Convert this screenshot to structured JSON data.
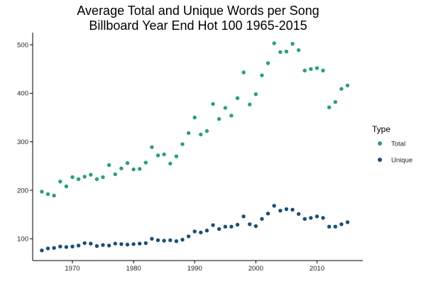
{
  "chart_data": {
    "type": "scatter",
    "title": "Average Total and Unique Words per Song",
    "subtitle": "Billboard Year End Hot 100 1965-2015",
    "xlabel": "",
    "ylabel": "",
    "xlim": [
      1963.5,
      2017.5
    ],
    "ylim": [
      55,
      525
    ],
    "x_ticks": [
      1970,
      1980,
      1990,
      2000,
      2010
    ],
    "y_ticks": [
      100,
      200,
      300,
      400,
      500
    ],
    "grid": false,
    "legend_title": "Type",
    "legend_position": "right",
    "series": [
      {
        "name": "Total",
        "color": "#2a9d7f",
        "points": [
          [
            1965,
            197
          ],
          [
            1966,
            192
          ],
          [
            1967,
            189
          ],
          [
            1968,
            218
          ],
          [
            1969,
            208
          ],
          [
            1970,
            227
          ],
          [
            1971,
            223
          ],
          [
            1972,
            228
          ],
          [
            1973,
            232
          ],
          [
            1974,
            223
          ],
          [
            1975,
            227
          ],
          [
            1976,
            252
          ],
          [
            1977,
            233
          ],
          [
            1978,
            245
          ],
          [
            1979,
            256
          ],
          [
            1980,
            243
          ],
          [
            1981,
            244
          ],
          [
            1982,
            257
          ],
          [
            1983,
            289
          ],
          [
            1984,
            272
          ],
          [
            1985,
            274
          ],
          [
            1986,
            255
          ],
          [
            1987,
            270
          ],
          [
            1988,
            295
          ],
          [
            1989,
            318
          ],
          [
            1990,
            350
          ],
          [
            1991,
            315
          ],
          [
            1992,
            322
          ],
          [
            1993,
            378
          ],
          [
            1994,
            347
          ],
          [
            1995,
            370
          ],
          [
            1996,
            354
          ],
          [
            1997,
            390
          ],
          [
            1998,
            443
          ],
          [
            1999,
            377
          ],
          [
            2000,
            398
          ],
          [
            2001,
            437
          ],
          [
            2002,
            462
          ],
          [
            2003,
            503
          ],
          [
            2004,
            485
          ],
          [
            2005,
            486
          ],
          [
            2006,
            502
          ],
          [
            2007,
            489
          ],
          [
            2008,
            447
          ],
          [
            2009,
            450
          ],
          [
            2010,
            452
          ],
          [
            2011,
            447
          ],
          [
            2012,
            371
          ],
          [
            2013,
            382
          ],
          [
            2014,
            409
          ],
          [
            2015,
            416
          ]
        ]
      },
      {
        "name": "Unique",
        "color": "#1b4f72",
        "points": [
          [
            1965,
            76
          ],
          [
            1966,
            80
          ],
          [
            1967,
            81
          ],
          [
            1968,
            84
          ],
          [
            1969,
            83
          ],
          [
            1970,
            84
          ],
          [
            1971,
            86
          ],
          [
            1972,
            91
          ],
          [
            1973,
            90
          ],
          [
            1974,
            85
          ],
          [
            1975,
            87
          ],
          [
            1976,
            86
          ],
          [
            1977,
            90
          ],
          [
            1978,
            89
          ],
          [
            1979,
            88
          ],
          [
            1980,
            89
          ],
          [
            1981,
            90
          ],
          [
            1982,
            91
          ],
          [
            1983,
            100
          ],
          [
            1984,
            97
          ],
          [
            1985,
            96
          ],
          [
            1986,
            97
          ],
          [
            1987,
            95
          ],
          [
            1988,
            98
          ],
          [
            1989,
            105
          ],
          [
            1990,
            115
          ],
          [
            1991,
            113
          ],
          [
            1992,
            117
          ],
          [
            1993,
            128
          ],
          [
            1994,
            120
          ],
          [
            1995,
            125
          ],
          [
            1996,
            125
          ],
          [
            1997,
            129
          ],
          [
            1998,
            146
          ],
          [
            1999,
            130
          ],
          [
            2000,
            126
          ],
          [
            2001,
            141
          ],
          [
            2002,
            152
          ],
          [
            2003,
            168
          ],
          [
            2004,
            158
          ],
          [
            2005,
            161
          ],
          [
            2006,
            160
          ],
          [
            2007,
            151
          ],
          [
            2008,
            141
          ],
          [
            2009,
            143
          ],
          [
            2010,
            146
          ],
          [
            2011,
            143
          ],
          [
            2012,
            125
          ],
          [
            2013,
            125
          ],
          [
            2014,
            130
          ],
          [
            2015,
            134
          ]
        ]
      }
    ]
  }
}
